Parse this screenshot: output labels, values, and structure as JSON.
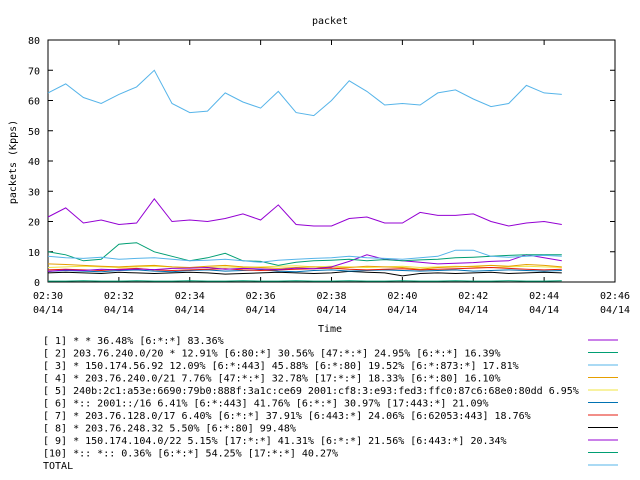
{
  "chart_data": {
    "type": "line",
    "title": "packet",
    "xlabel": "Time",
    "ylabel": "packets (Kpps)",
    "ylim": [
      0,
      80
    ],
    "yticks": [
      0,
      10,
      20,
      30,
      40,
      50,
      60,
      70,
      80
    ],
    "xlim": [
      "02:30",
      "02:46"
    ],
    "xticks": [
      {
        "time": "02:30",
        "date": "04/14"
      },
      {
        "time": "02:32",
        "date": "04/14"
      },
      {
        "time": "02:34",
        "date": "04/14"
      },
      {
        "time": "02:36",
        "date": "04/14"
      },
      {
        "time": "02:38",
        "date": "04/14"
      },
      {
        "time": "02:40",
        "date": "04/14"
      },
      {
        "time": "02:42",
        "date": "04/14"
      },
      {
        "time": "02:44",
        "date": "04/14"
      },
      {
        "time": "02:46",
        "date": "04/14"
      }
    ],
    "grid": false,
    "legend_position": "bottom",
    "x": [
      "02:30:00",
      "02:30:30",
      "02:31:00",
      "02:31:30",
      "02:32:00",
      "02:32:30",
      "02:33:00",
      "02:33:30",
      "02:34:00",
      "02:34:30",
      "02:35:00",
      "02:35:30",
      "02:36:00",
      "02:36:30",
      "02:37:00",
      "02:37:30",
      "02:38:00",
      "02:38:30",
      "02:39:00",
      "02:39:30",
      "02:40:00",
      "02:40:30",
      "02:41:00",
      "02:41:30",
      "02:42:00",
      "02:42:30",
      "02:43:00",
      "02:43:30",
      "02:44:00",
      "02:44:30"
    ],
    "series": [
      {
        "name": "[ 1] * * 36.48%  [6:*:*] 83.36%",
        "color": "#9400d3",
        "values": [
          3.5,
          4.0,
          3.8,
          4.2,
          4.0,
          4.3,
          4.1,
          4.5,
          4.6,
          4.8,
          4.2,
          4.5,
          4.3,
          4.1,
          4.6,
          4.4,
          5.0,
          6.8,
          9.0,
          7.5,
          7.0,
          6.5,
          6.0,
          6.2,
          6.4,
          6.8,
          7.0,
          9.0,
          8.0,
          7.0
        ]
      },
      {
        "name": "[ 2] 203.76.240.0/20 * 12.91%  [6:80:*] 30.56% [47:*:*] 24.95% [6:*:*] 16.39%",
        "color": "#009e73",
        "values": [
          10.0,
          9.0,
          7.0,
          7.5,
          12.5,
          13.0,
          10.0,
          8.5,
          7.0,
          8.0,
          9.5,
          7.0,
          6.8,
          5.5,
          6.5,
          7.0,
          7.2,
          7.5,
          7.0,
          7.4,
          7.0,
          7.3,
          7.5,
          8.0,
          8.2,
          8.5,
          8.8,
          9.0,
          9.0,
          9.0
        ]
      },
      {
        "name": "[ 3] * 150.174.56.92 12.09%  [6:*:443] 45.88% [6:*:80] 19.52% [6:*:873:*] 17.81%",
        "color": "#56b4e9",
        "values": [
          62.5,
          65.5,
          61.0,
          59.0,
          62.0,
          64.5,
          70.0,
          59.0,
          56.0,
          56.5,
          62.5,
          59.5,
          57.5,
          63.0,
          56.0,
          55.0,
          60.0,
          66.5,
          63.0,
          58.5,
          59.0,
          58.5,
          62.5,
          63.5,
          60.5,
          58.0,
          59.0,
          65.0,
          62.5,
          62.0
        ]
      },
      {
        "name": "[ 4] * 203.76.240.0/21 7.76%  [47:*:*] 32.78% [17:*:*] 18.33% [6:*:80] 16.10%",
        "color": "#e69f00",
        "values": [
          6.0,
          5.8,
          5.5,
          5.2,
          5.0,
          5.3,
          5.5,
          5.0,
          4.8,
          5.2,
          5.5,
          5.0,
          4.8,
          4.5,
          4.8,
          5.0,
          4.6,
          4.8,
          5.2,
          5.0,
          4.8,
          4.2,
          4.8,
          5.0,
          5.2,
          5.5,
          5.2,
          5.8,
          5.5,
          5.0
        ]
      },
      {
        "name": "[ 5] 240b:2c1:a53e:6690:79b0:888f:3a1c:ce69 2001:cf8:3:e93:fed3:ffc0:87c6:68e0:80dd 6.95%",
        "color": "#f0e442",
        "values": [
          4.8,
          5.0,
          5.2,
          5.0,
          4.8,
          5.0,
          5.2,
          5.0,
          4.6,
          4.8,
          5.0,
          4.8,
          5.0,
          5.2,
          5.4,
          5.0,
          5.2,
          5.0,
          4.8,
          5.0,
          5.2,
          4.8,
          5.0,
          5.2,
          5.0,
          4.8,
          5.0,
          5.2,
          5.0,
          4.8
        ]
      },
      {
        "name": "[ 6] *:: 2001::/16 6.41%  [6:*:443] 41.76% [6:*:*] 30.97% [17:443:*] 21.09%",
        "color": "#0072b2",
        "values": [
          3.5,
          3.8,
          3.6,
          3.4,
          3.8,
          4.0,
          3.6,
          3.4,
          3.8,
          4.0,
          3.6,
          3.8,
          4.0,
          3.6,
          3.4,
          3.8,
          4.0,
          3.6,
          3.8,
          4.0,
          3.8,
          3.6,
          3.8,
          4.0,
          3.6,
          3.8,
          4.0,
          3.8,
          3.6,
          3.8
        ]
      },
      {
        "name": "[ 7] * 203.76.128.0/17 6.40%  [6:*:*] 37.91% [6:443:*] 24.06% [6:62053:443] 18.76%",
        "color": "#e51e10",
        "values": [
          4.0,
          4.2,
          4.0,
          3.8,
          4.2,
          4.5,
          4.0,
          3.8,
          4.0,
          4.2,
          4.4,
          4.0,
          3.8,
          4.0,
          4.2,
          4.4,
          4.6,
          4.2,
          4.0,
          4.2,
          4.4,
          4.0,
          4.2,
          4.4,
          4.6,
          4.8,
          4.5,
          4.2,
          4.0,
          4.2
        ]
      },
      {
        "name": "[ 8] * 203.76.248.32 5.50%  [6:*:80] 99.48%",
        "color": "#000000",
        "values": [
          3.0,
          3.2,
          3.0,
          2.8,
          3.2,
          3.0,
          2.8,
          3.0,
          3.2,
          3.0,
          2.6,
          2.8,
          3.0,
          3.2,
          3.0,
          2.8,
          3.0,
          3.5,
          3.2,
          3.0,
          2.0,
          2.8,
          3.0,
          2.8,
          3.0,
          3.2,
          2.8,
          3.0,
          3.2,
          3.0
        ]
      },
      {
        "name": "[ 9] * 150.174.104.0/22 5.15%  [17:*:*] 41.31% [6:*:*] 21.56% [6:443:*] 20.34%",
        "color": "#9400d3",
        "values": [
          21.5,
          24.5,
          19.5,
          20.5,
          19.0,
          19.5,
          27.5,
          20.0,
          20.5,
          20.0,
          21.0,
          22.5,
          20.5,
          25.5,
          19.0,
          18.5,
          18.5,
          21.0,
          21.5,
          19.5,
          19.5,
          23.0,
          22.0,
          22.0,
          22.5,
          20.0,
          18.5,
          19.5,
          20.0,
          19.0
        ]
      },
      {
        "name": "[10] *:: *:: 0.36%  [6:*:*] 54.25% [17:*:*] 40.27%",
        "color": "#009e73",
        "values": [
          0.3,
          0.3,
          0.4,
          0.3,
          0.3,
          0.4,
          0.3,
          0.3,
          0.4,
          0.3,
          0.3,
          0.4,
          0.3,
          0.3,
          0.4,
          0.3,
          0.3,
          0.4,
          0.3,
          0.3,
          0.4,
          0.3,
          0.3,
          0.4,
          0.3,
          0.3,
          0.4,
          0.3,
          0.3,
          0.4
        ]
      },
      {
        "name": "TOTAL",
        "color": "#56b4e9",
        "values": [
          8.5,
          8.0,
          7.8,
          8.2,
          7.5,
          7.8,
          8.0,
          7.5,
          7.0,
          7.2,
          7.5,
          7.0,
          6.5,
          7.2,
          7.5,
          7.8,
          8.0,
          8.5,
          8.0,
          7.8,
          7.5,
          8.0,
          8.5,
          10.5,
          10.5,
          8.5,
          8.2,
          8.5,
          8.8,
          8.5
        ]
      }
    ]
  }
}
